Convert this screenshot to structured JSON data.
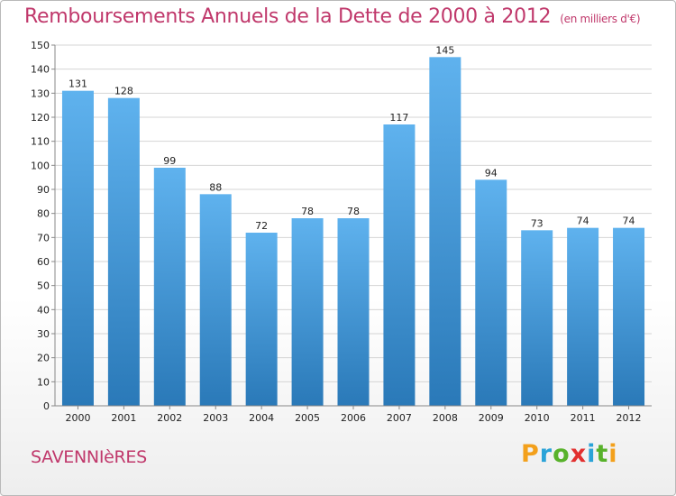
{
  "header": {
    "title": "Remboursements Annuels de la Dette de 2000 à 2012",
    "unit": "(en milliers d'€)"
  },
  "footer": {
    "commune": "SAVENNIèRES",
    "logo": {
      "letters": [
        "P",
        "r",
        "o",
        "x",
        "i",
        "t",
        "i"
      ],
      "colors": [
        "#f3a01b",
        "#2aa3d8",
        "#58b22b",
        "#e2302f",
        "#2aa3d8",
        "#58b22b",
        "#f3a01b"
      ]
    }
  },
  "chart_data": {
    "type": "bar",
    "title": "Remboursements Annuels de la Dette de 2000 à 2012",
    "unit": "(en milliers d'€)",
    "categories": [
      "2000",
      "2001",
      "2002",
      "2003",
      "2004",
      "2005",
      "2006",
      "2007",
      "2008",
      "2009",
      "2010",
      "2011",
      "2012"
    ],
    "values": [
      131,
      128,
      99,
      88,
      72,
      78,
      78,
      117,
      145,
      94,
      73,
      74,
      74
    ],
    "ylim": [
      0,
      150
    ],
    "yticks": [
      0,
      10,
      20,
      30,
      40,
      50,
      60,
      70,
      80,
      90,
      100,
      110,
      120,
      130,
      140,
      150
    ],
    "grid": true,
    "bar_color_top": "#5fb2ee",
    "bar_color_bottom": "#2a79b8"
  }
}
